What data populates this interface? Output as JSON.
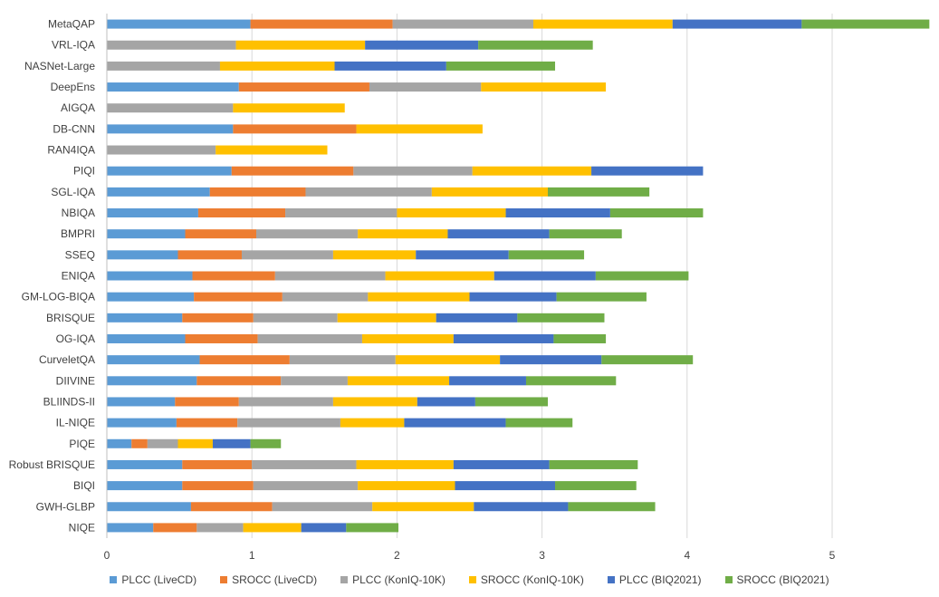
{
  "chart_data": {
    "type": "bar",
    "orientation": "horizontal",
    "stacked": true,
    "title": "",
    "xlabel": "",
    "ylabel": "",
    "xlim": [
      0,
      5.7
    ],
    "xticks": [
      "0",
      "1",
      "2",
      "3",
      "4",
      "5"
    ],
    "grid": true,
    "legend_position": "bottom",
    "categories": [
      "MetaQAP",
      "VRL-IQA",
      "NASNet-Large",
      "DeepEns",
      "AIGQA",
      "DB-CNN",
      "RAN4IQA",
      "PIQI",
      "SGL-IQA",
      "NBIQA",
      "BMPRI",
      "SSEQ",
      "ENIQA",
      "GM-LOG-BIQA",
      "BRISQUE",
      "OG-IQA",
      "CurveletQA",
      "DIIVINE",
      "BLIINDS-II",
      "IL-NIQE",
      "PIQE",
      "Robust BRISQUE",
      "BIQI",
      "GWH-GLBP",
      "NIQE"
    ],
    "series": [
      {
        "name": "PLCC (LiveCD)",
        "color": "#5B9BD5",
        "values": [
          0.99,
          0,
          0,
          0.91,
          0,
          0.87,
          0,
          0.86,
          0.71,
          0.63,
          0.54,
          0.49,
          0.59,
          0.6,
          0.52,
          0.54,
          0.64,
          0.62,
          0.47,
          0.48,
          0.17,
          0.52,
          0.52,
          0.58,
          0.32
        ]
      },
      {
        "name": "SROCC (LiveCD)",
        "color": "#ED7D31",
        "values": [
          0.98,
          0,
          0,
          0.9,
          0,
          0.85,
          0,
          0.84,
          0.66,
          0.6,
          0.49,
          0.44,
          0.57,
          0.61,
          0.49,
          0.5,
          0.62,
          0.58,
          0.44,
          0.42,
          0.11,
          0.48,
          0.49,
          0.56,
          0.3
        ]
      },
      {
        "name": "PLCC (KonIQ-10K)",
        "color": "#A5A5A5",
        "values": [
          0.97,
          0.89,
          0.78,
          0.77,
          0.87,
          0,
          0.75,
          0.82,
          0.87,
          0.77,
          0.7,
          0.63,
          0.76,
          0.59,
          0.58,
          0.72,
          0.73,
          0.46,
          0.65,
          0.71,
          0.21,
          0.72,
          0.72,
          0.69,
          0.32
        ]
      },
      {
        "name": "SROCC (KonIQ-10K)",
        "color": "#FFC000",
        "values": [
          0.96,
          0.89,
          0.79,
          0.86,
          0.77,
          0.87,
          0.77,
          0.82,
          0.8,
          0.75,
          0.62,
          0.57,
          0.75,
          0.7,
          0.68,
          0.63,
          0.72,
          0.7,
          0.58,
          0.44,
          0.24,
          0.67,
          0.67,
          0.7,
          0.4
        ]
      },
      {
        "name": "PLCC (BIQ2021)",
        "color": "#4472C4",
        "values": [
          0.89,
          0.78,
          0.77,
          0,
          0,
          0,
          0,
          0.77,
          0,
          0.72,
          0.7,
          0.64,
          0.7,
          0.6,
          0.56,
          0.69,
          0.7,
          0.53,
          0.4,
          0.7,
          0.26,
          0.66,
          0.69,
          0.65,
          0.31
        ]
      },
      {
        "name": "SROCC (BIQ2021)",
        "color": "#70AD47",
        "values": [
          0.88,
          0.79,
          0.75,
          0,
          0,
          0,
          0,
          0,
          0.7,
          0.64,
          0.5,
          0.52,
          0.64,
          0.62,
          0.6,
          0.36,
          0.63,
          0.62,
          0.5,
          0.46,
          0.21,
          0.61,
          0.56,
          0.6,
          0.36
        ]
      }
    ]
  }
}
